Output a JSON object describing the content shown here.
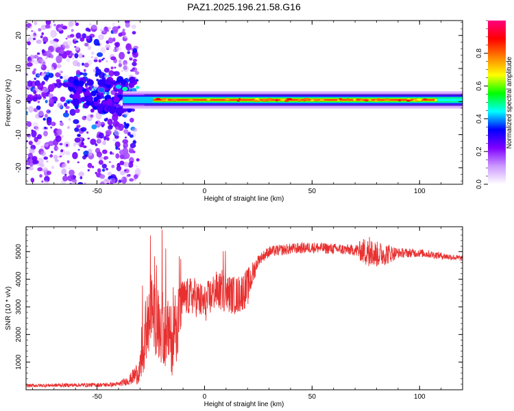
{
  "title": "PAZ1.2025.196.21.58.G16",
  "chart_data": [
    {
      "type": "heatmap",
      "xlabel": "Height of straight line (km)",
      "ylabel": "Frequency (Hz)",
      "xlim": [
        -83,
        120
      ],
      "ylim": [
        -25,
        24.5
      ],
      "xticks": [
        -50,
        0,
        50,
        100
      ],
      "yticks": [
        -20,
        -10,
        0,
        10,
        20
      ],
      "xtick_labels": [
        "-50",
        "0",
        "50",
        "100"
      ],
      "ytick_labels": [
        "-20",
        "-10",
        "0",
        "10",
        "20"
      ],
      "colorbar": {
        "label": "Normalized spectral amplitude",
        "range": [
          0,
          1
        ],
        "ticks": [
          0,
          0.2,
          0.4,
          0.6,
          0.8
        ],
        "tick_labels": [
          "0.0",
          "0.2",
          "0.4",
          "0.6",
          "0.8"
        ],
        "colors": [
          "#ffffff",
          "#cc99ff",
          "#7f00ff",
          "#0000ff",
          "#00ffff",
          "#00ff00",
          "#ffff00",
          "#ff8000",
          "#ff0000",
          "#ff0080"
        ]
      },
      "features": {
        "scatter_region_km": [
          -83,
          -35
        ],
        "central_line_start_km": -38,
        "central_line_freq_hz": 0.5,
        "peak_amplitude": 0.85
      }
    },
    {
      "type": "line",
      "xlabel": "Height of straight line (km)",
      "ylabel": "SNR (10 * v/v)",
      "xlim": [
        -83,
        120
      ],
      "ylim": [
        0,
        5900
      ],
      "xticks": [
        -50,
        0,
        50,
        100
      ],
      "yticks": [
        1000,
        2000,
        3000,
        4000,
        5000
      ],
      "xtick_labels": [
        "-50",
        "0",
        "50",
        "100"
      ],
      "ytick_labels": [
        "1000",
        "2000",
        "3000",
        "4000",
        "5000"
      ],
      "line_color": "#e83030",
      "envelope": {
        "x": [
          -83,
          -60,
          -45,
          -40,
          -35,
          -30,
          -28,
          -25,
          -20,
          -15,
          -12,
          -10,
          -5,
          0,
          5,
          10,
          15,
          20,
          25,
          30,
          40,
          50,
          60,
          70,
          75,
          80,
          90,
          100,
          110,
          120
        ],
        "y": [
          150,
          170,
          180,
          200,
          350,
          700,
          1500,
          2800,
          2200,
          1800,
          2600,
          3300,
          3400,
          3100,
          3600,
          3500,
          3400,
          3700,
          4700,
          5000,
          5100,
          5150,
          5100,
          5050,
          5000,
          4900,
          4950,
          4950,
          4850,
          4750
        ]
      },
      "noise": {
        "x": [
          -83,
          -40,
          -35,
          -30,
          -25,
          -12,
          -10,
          20,
          25,
          70,
          75,
          85,
          90,
          120
        ],
        "amplitude": [
          60,
          80,
          180,
          500,
          1300,
          1300,
          700,
          700,
          200,
          200,
          550,
          400,
          180,
          100
        ]
      }
    }
  ]
}
